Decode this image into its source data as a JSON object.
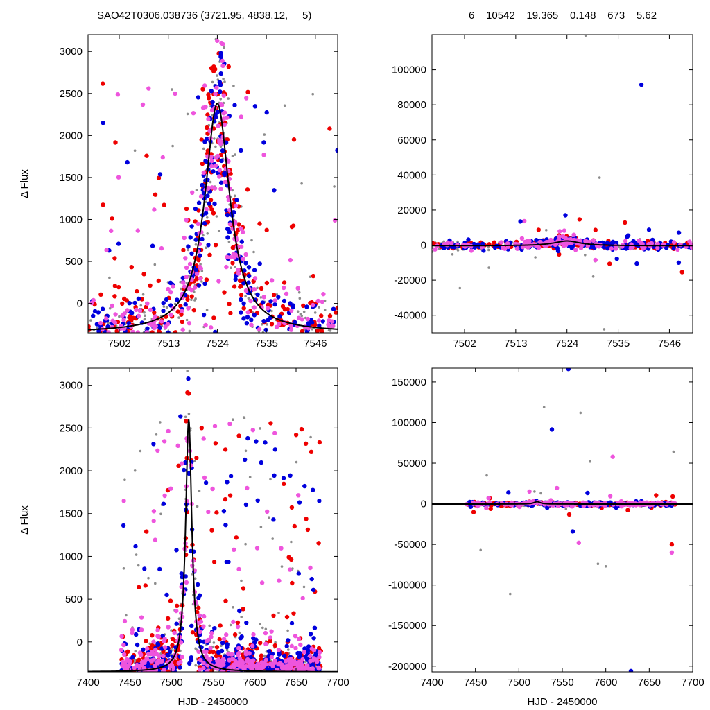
{
  "header": {
    "left": "SAO42T0306.038736 (3721.95, 4838.12,     5)",
    "right": "6    10542    19.365    0.148    673    5.62"
  },
  "colors": {
    "frame": "#000000",
    "model_curve": "#000000",
    "series": {
      "grey": "#8c8c8c",
      "red": "#ee0000",
      "blue": "#0000dd",
      "pink": "#ee55dd"
    }
  },
  "chart_data": [
    {
      "id": "top-left",
      "type": "scatter",
      "title": "",
      "xlabel": "",
      "ylabel": "Δ Flux",
      "xlim": [
        7495,
        7551
      ],
      "ylim": [
        -350,
        3200
      ],
      "xticks": [
        7502,
        7513,
        7524,
        7535,
        7546
      ],
      "yticks": [
        0,
        500,
        1000,
        1500,
        2000,
        2500,
        3000
      ],
      "ytick_side": "left",
      "grid": false,
      "model": {
        "peak_x": 7524,
        "amplitude": 2380,
        "width": 3.4,
        "baseline": -350
      },
      "series": [
        {
          "color_key": "grey"
        },
        {
          "color_key": "red"
        },
        {
          "color_key": "blue"
        },
        {
          "color_key": "pink"
        }
      ]
    },
    {
      "id": "top-right",
      "type": "scatter",
      "title": "",
      "xlabel": "",
      "ylabel": "",
      "xlim": [
        7495,
        7551
      ],
      "ylim": [
        -50000,
        120000
      ],
      "xticks": [
        7502,
        7513,
        7524,
        7535,
        7546
      ],
      "yticks": [
        -40000,
        -20000,
        0,
        20000,
        40000,
        60000,
        80000,
        100000
      ],
      "ytick_side": "left",
      "grid": false,
      "model": {
        "peak_x": 7524,
        "amplitude": 2380,
        "width": 3.4,
        "baseline": -350
      },
      "outliers": [
        {
          "x": 7540,
          "y": 91500,
          "color_key": "blue"
        },
        {
          "x": 7514,
          "y": 13500,
          "color_key": "blue"
        },
        {
          "x": 7531,
          "y": 38500,
          "color_key": "grey"
        },
        {
          "x": 7501,
          "y": -24500,
          "color_key": "grey"
        },
        {
          "x": 7532,
          "y": -48000,
          "color_key": "grey"
        },
        {
          "x": 7539,
          "y": -10500,
          "color_key": "blue"
        },
        {
          "x": 7548,
          "y": -10000,
          "color_key": "blue"
        },
        {
          "x": 7528,
          "y": 119500,
          "color_key": "grey"
        }
      ]
    },
    {
      "id": "bottom-left",
      "type": "scatter",
      "title": "",
      "xlabel": "HJD - 2450000",
      "ylabel": "Δ Flux",
      "xlim": [
        7400,
        7700
      ],
      "ylim": [
        -350,
        3200
      ],
      "xticks": [
        7400,
        7450,
        7500,
        7550,
        7600,
        7650,
        7700
      ],
      "yticks": [
        0,
        500,
        1000,
        1500,
        2000,
        2500,
        3000
      ],
      "ytick_side": "left",
      "grid": false,
      "data_range": [
        7440,
        7680
      ],
      "model": {
        "peak_x": 7521,
        "amplitude": 2600,
        "width": 4.5,
        "baseline": -350
      },
      "series": [
        {
          "color_key": "grey"
        },
        {
          "color_key": "red"
        },
        {
          "color_key": "blue"
        },
        {
          "color_key": "pink"
        }
      ]
    },
    {
      "id": "bottom-right",
      "type": "scatter",
      "title": "",
      "xlabel": "HJD - 2450000",
      "ylabel": "",
      "xlim": [
        7400,
        7700
      ],
      "ylim": [
        -207000,
        167000
      ],
      "xticks": [
        7400,
        7450,
        7500,
        7550,
        7600,
        7650,
        7700
      ],
      "yticks": [
        -200000,
        -150000,
        -100000,
        -50000,
        0,
        50000,
        100000,
        150000
      ],
      "ytick_side": "left",
      "grid": false,
      "data_range": [
        7440,
        7680
      ],
      "model": {
        "peak_x": 7521,
        "amplitude": 2600,
        "width": 4.5,
        "baseline": -350
      },
      "outliers": [
        {
          "x": 7557,
          "y": 166000,
          "color_key": "blue"
        },
        {
          "x": 7529,
          "y": 119000,
          "color_key": "grey"
        },
        {
          "x": 7571,
          "y": 112000,
          "color_key": "grey"
        },
        {
          "x": 7538,
          "y": 91500,
          "color_key": "blue"
        },
        {
          "x": 7608,
          "y": 58000,
          "color_key": "pink"
        },
        {
          "x": 7678,
          "y": 64000,
          "color_key": "grey"
        },
        {
          "x": 7582,
          "y": 52000,
          "color_key": "grey"
        },
        {
          "x": 7463,
          "y": 35000,
          "color_key": "grey"
        },
        {
          "x": 7490,
          "y": -111000,
          "color_key": "grey"
        },
        {
          "x": 7591,
          "y": -74000,
          "color_key": "grey"
        },
        {
          "x": 7600,
          "y": -77000,
          "color_key": "grey"
        },
        {
          "x": 7629,
          "y": -206000,
          "color_key": "blue"
        },
        {
          "x": 7676,
          "y": -50000,
          "color_key": "red"
        },
        {
          "x": 7676,
          "y": -60000,
          "color_key": "pink"
        },
        {
          "x": 7562,
          "y": -34000,
          "color_key": "blue"
        },
        {
          "x": 7569,
          "y": -48000,
          "color_key": "pink"
        },
        {
          "x": 7456,
          "y": -57000,
          "color_key": "grey"
        },
        {
          "x": 7677,
          "y": 9000,
          "color_key": "red"
        }
      ]
    }
  ]
}
